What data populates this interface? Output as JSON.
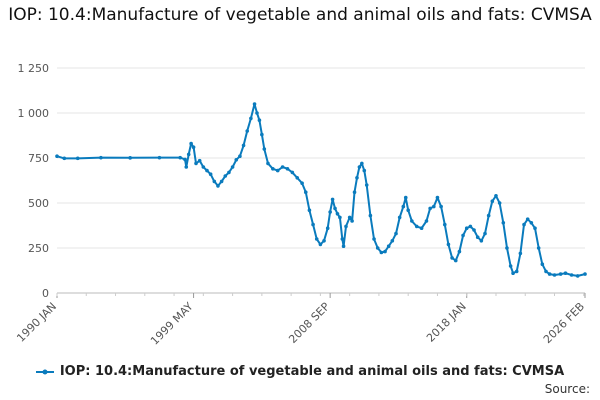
{
  "chart_data": {
    "type": "line",
    "title": "IOP: 10.4:Manufacture of vegetable and animal oils and fats: CVMSA",
    "series": [
      {
        "name": "IOP: 10.4:Manufacture of vegetable and animal oils and fats: CVMSA",
        "color": "#0a7bbd",
        "points": [
          [
            "1990-01",
            760
          ],
          [
            "1990-07",
            748
          ],
          [
            "1991-06",
            748
          ],
          [
            "1993-01",
            752
          ],
          [
            "1995-01",
            751
          ],
          [
            "1997-01",
            752
          ],
          [
            "1998-06",
            752
          ],
          [
            "1998-10",
            742
          ],
          [
            "1998-11",
            700
          ],
          [
            "1999-01",
            770
          ],
          [
            "1999-03",
            830
          ],
          [
            "1999-05",
            810
          ],
          [
            "1999-07",
            720
          ],
          [
            "1999-10",
            735
          ],
          [
            "2000-01",
            700
          ],
          [
            "2000-04",
            680
          ],
          [
            "2000-07",
            660
          ],
          [
            "2000-10",
            620
          ],
          [
            "2001-01",
            595
          ],
          [
            "2001-04",
            620
          ],
          [
            "2001-07",
            650
          ],
          [
            "2001-10",
            670
          ],
          [
            "2002-01",
            700
          ],
          [
            "2002-04",
            740
          ],
          [
            "2002-07",
            760
          ],
          [
            "2002-10",
            820
          ],
          [
            "2003-01",
            900
          ],
          [
            "2003-04",
            970
          ],
          [
            "2003-07",
            1050
          ],
          [
            "2003-09",
            1000
          ],
          [
            "2003-11",
            960
          ],
          [
            "2004-01",
            880
          ],
          [
            "2004-03",
            800
          ],
          [
            "2004-06",
            720
          ],
          [
            "2004-10",
            690
          ],
          [
            "2005-02",
            680
          ],
          [
            "2005-06",
            700
          ],
          [
            "2005-10",
            690
          ],
          [
            "2006-02",
            670
          ],
          [
            "2006-06",
            640
          ],
          [
            "2006-10",
            610
          ],
          [
            "2007-01",
            560
          ],
          [
            "2007-04",
            460
          ],
          [
            "2007-07",
            380
          ],
          [
            "2007-10",
            300
          ],
          [
            "2008-01",
            270
          ],
          [
            "2008-04",
            290
          ],
          [
            "2008-07",
            360
          ],
          [
            "2008-09",
            450
          ],
          [
            "2008-11",
            520
          ],
          [
            "2009-01",
            470
          ],
          [
            "2009-03",
            440
          ],
          [
            "2009-05",
            420
          ],
          [
            "2009-07",
            300
          ],
          [
            "2009-08",
            260
          ],
          [
            "2009-10",
            370
          ],
          [
            "2010-01",
            420
          ],
          [
            "2010-03",
            400
          ],
          [
            "2010-05",
            560
          ],
          [
            "2010-07",
            640
          ],
          [
            "2010-09",
            700
          ],
          [
            "2010-11",
            720
          ],
          [
            "2011-01",
            680
          ],
          [
            "2011-03",
            600
          ],
          [
            "2011-06",
            430
          ],
          [
            "2011-09",
            300
          ],
          [
            "2011-12",
            250
          ],
          [
            "2012-03",
            225
          ],
          [
            "2012-06",
            230
          ],
          [
            "2012-09",
            260
          ],
          [
            "2012-12",
            290
          ],
          [
            "2013-03",
            330
          ],
          [
            "2013-06",
            420
          ],
          [
            "2013-09",
            480
          ],
          [
            "2013-11",
            530
          ],
          [
            "2014-01",
            460
          ],
          [
            "2014-04",
            400
          ],
          [
            "2014-08",
            370
          ],
          [
            "2014-12",
            360
          ],
          [
            "2015-04",
            400
          ],
          [
            "2015-07",
            470
          ],
          [
            "2015-10",
            480
          ],
          [
            "2016-01",
            530
          ],
          [
            "2016-04",
            480
          ],
          [
            "2016-07",
            380
          ],
          [
            "2016-10",
            270
          ],
          [
            "2017-01",
            195
          ],
          [
            "2017-04",
            180
          ],
          [
            "2017-07",
            230
          ],
          [
            "2017-10",
            320
          ],
          [
            "2018-01",
            360
          ],
          [
            "2018-04",
            370
          ],
          [
            "2018-07",
            350
          ],
          [
            "2018-10",
            310
          ],
          [
            "2019-01",
            290
          ],
          [
            "2019-04",
            330
          ],
          [
            "2019-07",
            430
          ],
          [
            "2019-10",
            510
          ],
          [
            "2020-01",
            540
          ],
          [
            "2020-04",
            500
          ],
          [
            "2020-07",
            390
          ],
          [
            "2020-10",
            250
          ],
          [
            "2021-01",
            150
          ],
          [
            "2021-03",
            110
          ],
          [
            "2021-06",
            120
          ],
          [
            "2021-09",
            220
          ],
          [
            "2021-12",
            380
          ],
          [
            "2022-03",
            410
          ],
          [
            "2022-06",
            390
          ],
          [
            "2022-09",
            360
          ],
          [
            "2022-12",
            250
          ],
          [
            "2023-03",
            160
          ],
          [
            "2023-06",
            120
          ],
          [
            "2023-09",
            105
          ],
          [
            "2024-01",
            100
          ],
          [
            "2024-06",
            105
          ],
          [
            "2024-10",
            110
          ],
          [
            "2025-03",
            100
          ],
          [
            "2025-08",
            95
          ],
          [
            "2026-02",
            105
          ]
        ]
      }
    ],
    "y_ticks": [
      0,
      250,
      500,
      750,
      1000,
      1250
    ],
    "y_tick_labels": [
      "0",
      "250",
      "500",
      "750",
      "1 000",
      "1 250"
    ],
    "x_ticks": [
      "1990-01",
      "1999-05",
      "2008-09",
      "2018-01",
      "2026-02"
    ],
    "x_tick_labels": [
      "1990 JAN",
      "1999 MAY",
      "2008 SEP",
      "2018 JAN",
      "2026 FEB"
    ],
    "xlim": [
      "1990-01",
      "2026-02"
    ],
    "ylim": [
      0,
      1250
    ],
    "grid": true,
    "legend_placement": "bottom"
  },
  "legend": {
    "label": "IOP: 10.4:Manufacture of vegetable and animal oils and fats: CVMSA"
  },
  "source_label": "Source:"
}
